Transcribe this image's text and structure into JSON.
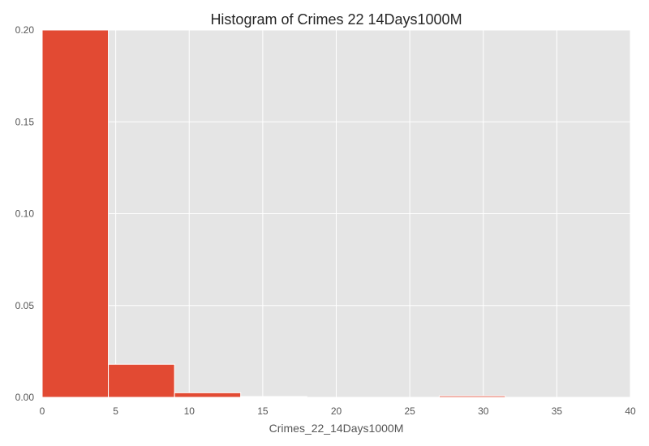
{
  "chart_data": {
    "type": "bar",
    "title": "Histogram of Crimes 22 14Days1000M",
    "xlabel": "Crimes_22_14Days1000M",
    "ylabel": "",
    "xlim": [
      0,
      40
    ],
    "ylim": [
      0,
      0.2
    ],
    "xticks": [
      0,
      5,
      10,
      15,
      20,
      25,
      30,
      35,
      40
    ],
    "xtick_labels": [
      "0",
      "5",
      "10",
      "15",
      "20",
      "25",
      "30",
      "35",
      "40"
    ],
    "yticks": [
      0,
      0.05,
      0.1,
      0.15,
      0.2
    ],
    "ytick_labels": [
      "0.00",
      "0.05",
      "0.10",
      "0.15",
      "0.20"
    ],
    "grid": true,
    "bins": [
      {
        "x0": 0,
        "x1": 4.5,
        "value": 0.2
      },
      {
        "x0": 4.5,
        "x1": 9.0,
        "value": 0.018
      },
      {
        "x0": 9.0,
        "x1": 13.5,
        "value": 0.0025
      },
      {
        "x0": 13.5,
        "x1": 18.0,
        "value": 0.0004
      },
      {
        "x0": 18.0,
        "x1": 22.5,
        "value": 0
      },
      {
        "x0": 22.5,
        "x1": 27.0,
        "value": 0
      },
      {
        "x0": 27.0,
        "x1": 31.5,
        "value": 0.0008
      },
      {
        "x0": 31.5,
        "x1": 36.0,
        "value": 0
      }
    ],
    "colors": {
      "bar": "#E24A33",
      "plot_bg": "#E5E5E5",
      "grid": "#FFFFFF"
    }
  }
}
